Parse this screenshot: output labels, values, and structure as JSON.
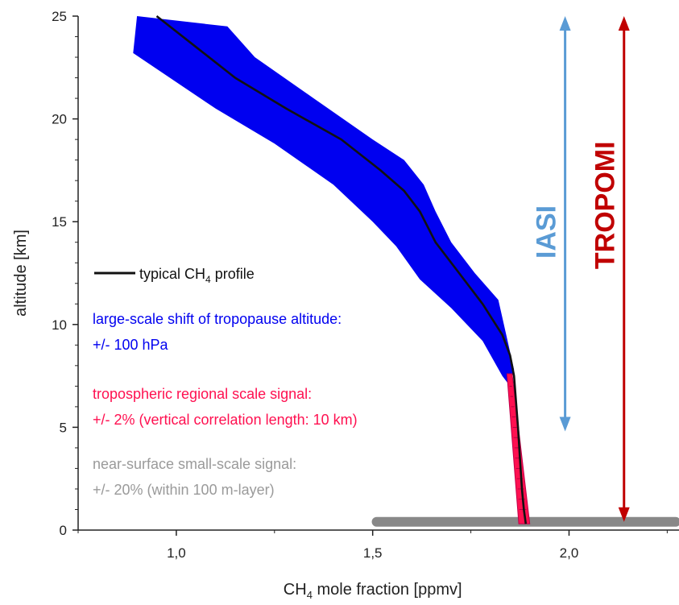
{
  "chart_data": {
    "type": "line",
    "xlabel_prefix": "CH",
    "xlabel_sub": "4",
    "xlabel_suffix": " mole fraction [ppmv]",
    "ylabel": "altitude [km]",
    "xlim": [
      0.75,
      2.28
    ],
    "ylim": [
      0,
      25
    ],
    "x_ticks": [
      1.0,
      1.5,
      2.0
    ],
    "x_tick_labels": [
      "1,0",
      "1,5",
      "2,0"
    ],
    "y_ticks": [
      0,
      5,
      10,
      15,
      20,
      25
    ],
    "y_tick_labels": [
      "0",
      "5",
      "10",
      "15",
      "20",
      "25"
    ],
    "grid": false,
    "series": [
      {
        "name_prefix": "typical CH",
        "name_sub": "4",
        "name_suffix": " profile",
        "kind": "line",
        "color": "#111111",
        "x": [
          0.95,
          1.05,
          1.15,
          1.28,
          1.42,
          1.52,
          1.58,
          1.62,
          1.66,
          1.72,
          1.78,
          1.83,
          1.85,
          1.86,
          1.87,
          1.875,
          1.88,
          1.885,
          1.89
        ],
        "y": [
          25,
          23.5,
          22,
          20.5,
          19.0,
          17.5,
          16.5,
          15.5,
          14.0,
          12.5,
          11.0,
          9.5,
          8.5,
          7.5,
          5.0,
          3.5,
          2.0,
          1.0,
          0.3
        ]
      },
      {
        "name": "large-scale shift of tropopause altitude:",
        "name_line2": "+/- 100 hPa",
        "kind": "band",
        "color": "#0000f0",
        "upper_x": [
          0.9,
          1.13,
          1.2,
          1.35,
          1.5,
          1.58,
          1.63,
          1.66,
          1.7,
          1.76,
          1.82,
          1.84,
          1.86
        ],
        "upper_y": [
          25,
          24.5,
          23.0,
          21.0,
          19.0,
          18.0,
          16.8,
          15.5,
          14.0,
          12.5,
          11.2,
          9.5,
          7.8
        ],
        "lower_x": [
          0.89,
          1.1,
          1.25,
          1.4,
          1.5,
          1.56,
          1.62,
          1.7,
          1.78,
          1.83,
          1.85
        ],
        "lower_y": [
          23.2,
          20.5,
          18.8,
          16.8,
          15.0,
          13.8,
          12.2,
          10.8,
          9.2,
          7.5,
          7.0
        ]
      },
      {
        "name": "tropospheric regional scale signal:",
        "name_line2": "+/- 2% (vertical correlation length: 10 km)",
        "kind": "band",
        "color": "#ff1050",
        "upper_x": [
          1.855,
          1.9
        ],
        "upper_y": [
          7.6,
          0.3
        ],
        "lower_x": [
          1.842,
          1.872
        ],
        "lower_y": [
          7.6,
          0.3
        ]
      },
      {
        "name": "near-surface small-scale signal:",
        "name_line2": "+/- 20% (within 100 m-layer)",
        "kind": "bar",
        "color": "#888888",
        "x": [
          1.51,
          2.28
        ],
        "y": 0.4
      }
    ],
    "annotations": [
      {
        "label": "IASI",
        "color": "#5a9bd5",
        "x": 1.99,
        "y_range": [
          4.8,
          25
        ]
      },
      {
        "label": "TROPOMI",
        "color": "#c00000",
        "x": 2.14,
        "y_range": [
          0.4,
          25
        ]
      }
    ]
  }
}
